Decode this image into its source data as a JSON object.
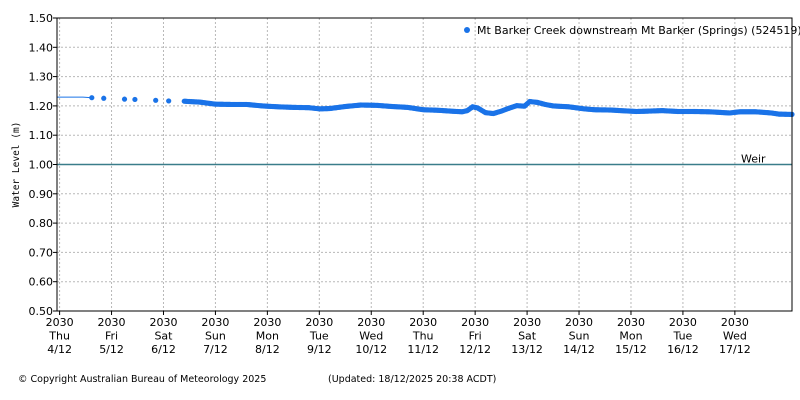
{
  "footer": {
    "copyright": "© Copyright Australian Bureau of Meteorology 2025",
    "updated": "(Updated: 18/12/2025 20:38 ACDT)"
  },
  "chart_data": {
    "type": "scatter",
    "title": "",
    "ylabel": "Water Level (m)",
    "xlabel": "",
    "ylim": [
      0.5,
      1.5
    ],
    "xlim": [
      -0.05,
      14.1
    ],
    "grid": true,
    "legend_position": "top-right",
    "yticks": [
      "0.50",
      "0.60",
      "0.70",
      "0.80",
      "0.90",
      "1.00",
      "1.10",
      "1.20",
      "1.30",
      "1.40",
      "1.50"
    ],
    "xticks": [
      {
        "x": 0,
        "lines": [
          "2030",
          "Thu",
          "4/12"
        ]
      },
      {
        "x": 1,
        "lines": [
          "2030",
          "Fri",
          "5/12"
        ]
      },
      {
        "x": 2,
        "lines": [
          "2030",
          "Sat",
          "6/12"
        ]
      },
      {
        "x": 3,
        "lines": [
          "2030",
          "Sun",
          "7/12"
        ]
      },
      {
        "x": 4,
        "lines": [
          "2030",
          "Mon",
          "8/12"
        ]
      },
      {
        "x": 5,
        "lines": [
          "2030",
          "Tue",
          "9/12"
        ]
      },
      {
        "x": 6,
        "lines": [
          "2030",
          "Wed",
          "10/12"
        ]
      },
      {
        "x": 7,
        "lines": [
          "2030",
          "Thu",
          "11/12"
        ]
      },
      {
        "x": 8,
        "lines": [
          "2030",
          "Fri",
          "12/12"
        ]
      },
      {
        "x": 9,
        "lines": [
          "2030",
          "Sat",
          "13/12"
        ]
      },
      {
        "x": 10,
        "lines": [
          "2030",
          "Sun",
          "14/12"
        ]
      },
      {
        "x": 11,
        "lines": [
          "2030",
          "Mon",
          "15/12"
        ]
      },
      {
        "x": 12,
        "lines": [
          "2030",
          "Tue",
          "16/12"
        ]
      },
      {
        "x": 13,
        "lines": [
          "2030",
          "Wed",
          "17/12"
        ]
      }
    ],
    "reference_line": {
      "label": "Weir",
      "value": 1.0,
      "color": "#3a7d8a"
    },
    "series": [
      {
        "name": "Mt Barker Creek downstream Mt Barker (Springs) (524519)",
        "color": "#1a73e8",
        "line_start": [
          [
            -0.05,
            1.23
          ],
          [
            0.45,
            1.23
          ],
          [
            0.62,
            1.228
          ]
        ],
        "sparse_points": [
          [
            0.62,
            1.228
          ],
          [
            0.85,
            1.226
          ],
          [
            1.25,
            1.223
          ],
          [
            1.45,
            1.222
          ],
          [
            1.85,
            1.219
          ],
          [
            2.1,
            1.217
          ]
        ],
        "dense_points": [
          [
            2.4,
            1.216
          ],
          [
            2.7,
            1.213
          ],
          [
            3.0,
            1.206
          ],
          [
            3.3,
            1.205
          ],
          [
            3.6,
            1.205
          ],
          [
            3.9,
            1.2
          ],
          [
            4.2,
            1.197
          ],
          [
            4.5,
            1.195
          ],
          [
            4.8,
            1.194
          ],
          [
            5.0,
            1.19
          ],
          [
            5.2,
            1.191
          ],
          [
            5.5,
            1.198
          ],
          [
            5.8,
            1.203
          ],
          [
            6.1,
            1.202
          ],
          [
            6.4,
            1.198
          ],
          [
            6.7,
            1.195
          ],
          [
            7.0,
            1.187
          ],
          [
            7.3,
            1.185
          ],
          [
            7.55,
            1.182
          ],
          [
            7.75,
            1.18
          ],
          [
            7.85,
            1.184
          ],
          [
            7.95,
            1.197
          ],
          [
            8.05,
            1.193
          ],
          [
            8.2,
            1.177
          ],
          [
            8.35,
            1.174
          ],
          [
            8.5,
            1.182
          ],
          [
            8.65,
            1.192
          ],
          [
            8.8,
            1.201
          ],
          [
            8.95,
            1.199
          ],
          [
            9.05,
            1.215
          ],
          [
            9.2,
            1.212
          ],
          [
            9.35,
            1.205
          ],
          [
            9.5,
            1.2
          ],
          [
            9.8,
            1.197
          ],
          [
            10.1,
            1.19
          ],
          [
            10.3,
            1.187
          ],
          [
            10.6,
            1.186
          ],
          [
            10.9,
            1.183
          ],
          [
            11.1,
            1.181
          ],
          [
            11.3,
            1.182
          ],
          [
            11.6,
            1.184
          ],
          [
            11.9,
            1.181
          ],
          [
            12.2,
            1.181
          ],
          [
            12.5,
            1.18
          ],
          [
            12.7,
            1.178
          ],
          [
            12.9,
            1.176
          ],
          [
            13.1,
            1.18
          ],
          [
            13.4,
            1.18
          ],
          [
            13.7,
            1.176
          ],
          [
            13.85,
            1.172
          ],
          [
            14.1,
            1.171
          ]
        ]
      }
    ]
  }
}
